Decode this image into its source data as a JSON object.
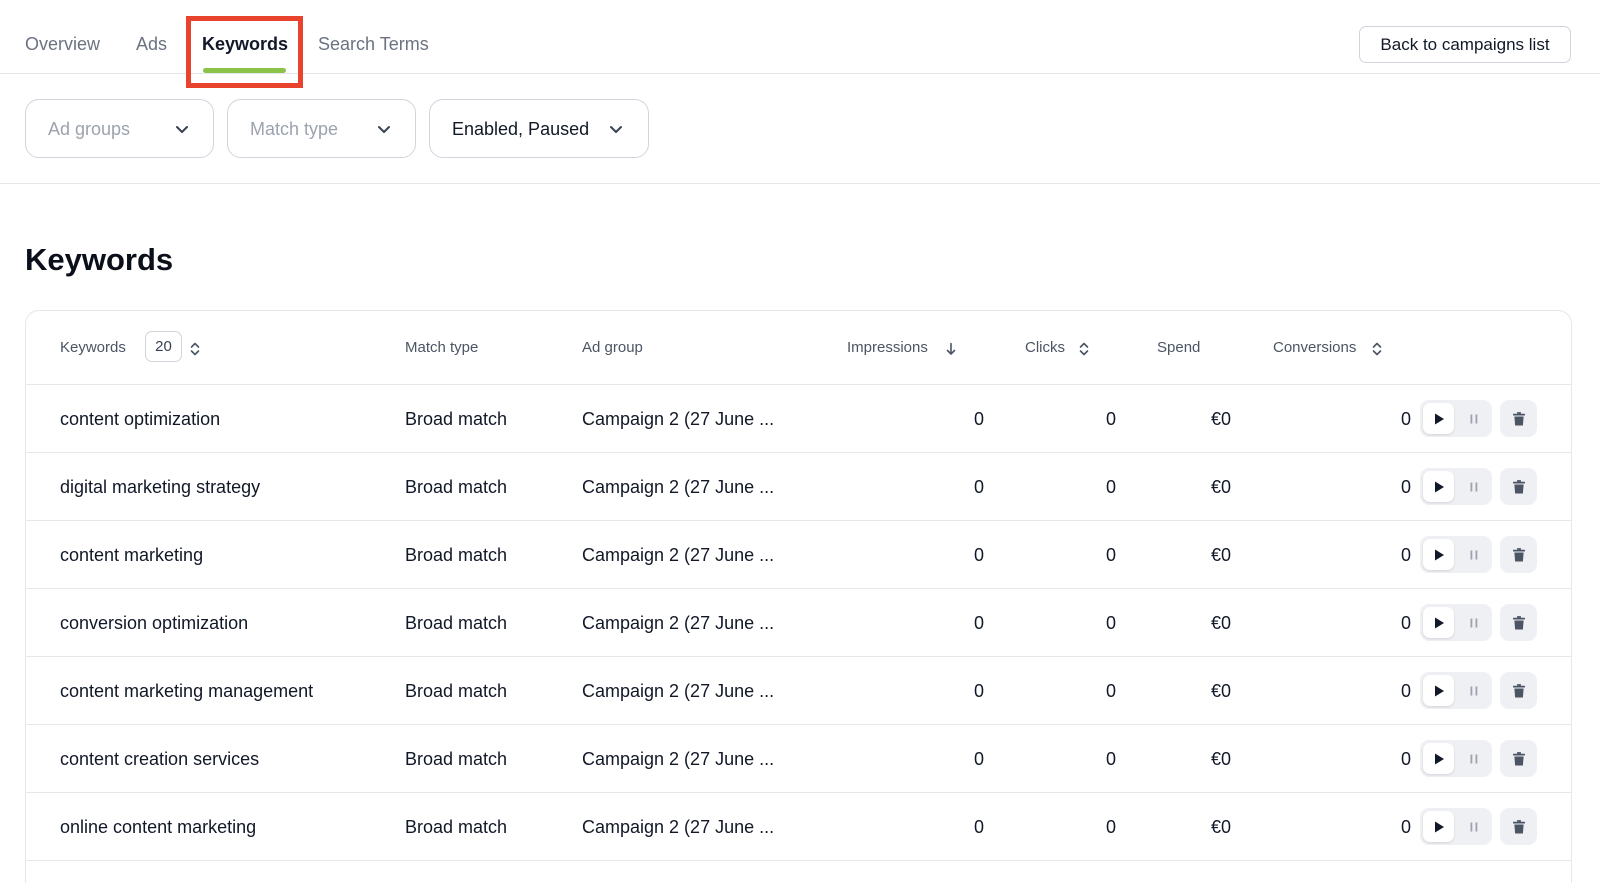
{
  "tabs": [
    {
      "label": "Overview",
      "active": false
    },
    {
      "label": "Ads",
      "active": false
    },
    {
      "label": "Keywords",
      "active": true
    },
    {
      "label": "Search Terms",
      "active": false
    }
  ],
  "back_button": "Back to campaigns list",
  "filters": {
    "ad_groups": {
      "placeholder": "Ad groups"
    },
    "match_type": {
      "placeholder": "Match type"
    },
    "status": {
      "value": "Enabled, Paused"
    }
  },
  "section_title": "Keywords",
  "table": {
    "columns": {
      "keywords": "Keywords",
      "keyword_count": "20",
      "match_type": "Match type",
      "ad_group": "Ad group",
      "impressions": "Impressions",
      "clicks": "Clicks",
      "spend": "Spend",
      "conversions": "Conversions"
    },
    "rows": [
      {
        "keyword": "content optimization",
        "match_type": "Broad match",
        "ad_group": "Campaign 2 (27 June ...",
        "impressions": "0",
        "clicks": "0",
        "spend": "€0",
        "conversions": "0"
      },
      {
        "keyword": "digital marketing strategy",
        "match_type": "Broad match",
        "ad_group": "Campaign 2 (27 June ...",
        "impressions": "0",
        "clicks": "0",
        "spend": "€0",
        "conversions": "0"
      },
      {
        "keyword": "content marketing",
        "match_type": "Broad match",
        "ad_group": "Campaign 2 (27 June ...",
        "impressions": "0",
        "clicks": "0",
        "spend": "€0",
        "conversions": "0"
      },
      {
        "keyword": "conversion optimization",
        "match_type": "Broad match",
        "ad_group": "Campaign 2 (27 June ...",
        "impressions": "0",
        "clicks": "0",
        "spend": "€0",
        "conversions": "0"
      },
      {
        "keyword": "content marketing management",
        "match_type": "Broad match",
        "ad_group": "Campaign 2 (27 June ...",
        "impressions": "0",
        "clicks": "0",
        "spend": "€0",
        "conversions": "0"
      },
      {
        "keyword": "content creation services",
        "match_type": "Broad match",
        "ad_group": "Campaign 2 (27 June ...",
        "impressions": "0",
        "clicks": "0",
        "spend": "€0",
        "conversions": "0"
      },
      {
        "keyword": "online content marketing",
        "match_type": "Broad match",
        "ad_group": "Campaign 2 (27 June ...",
        "impressions": "0",
        "clicks": "0",
        "spend": "€0",
        "conversions": "0"
      }
    ]
  },
  "icons": {
    "chevron": "chevron-down-icon",
    "sort": "sort-icon",
    "sort_desc": "arrow-down-icon",
    "play": "play-icon",
    "pause": "pause-icon",
    "delete": "trash-icon"
  },
  "colors": {
    "active_tab_underline": "#8bc34a",
    "highlight_box": "#e8432d"
  }
}
